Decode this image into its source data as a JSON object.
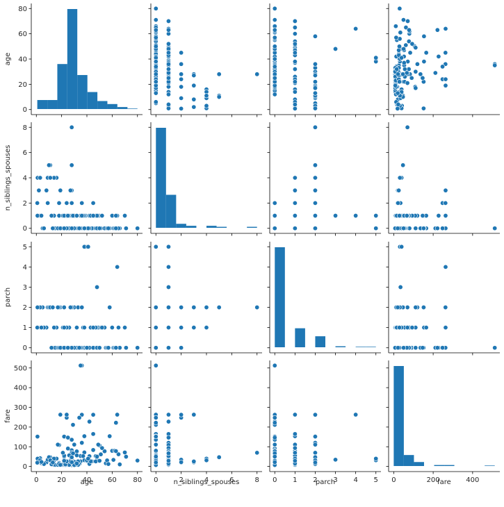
{
  "chart_data": {
    "type": "pairplot",
    "variables": [
      "age",
      "n_siblings_spouses",
      "parch",
      "fare"
    ],
    "point_color": "#1f77b4",
    "bar_color": "#1f77b4",
    "axes": {
      "age": {
        "range": [
          -4,
          84
        ],
        "ticks": [
          0,
          20,
          40,
          60,
          80
        ],
        "label": "age"
      },
      "n_siblings_spouses": {
        "range": [
          -0.4,
          8.4
        ],
        "ticks": [
          0,
          2,
          4,
          6,
          8
        ],
        "label": "n_siblings_spouses"
      },
      "parch": {
        "range": [
          -0.25,
          5.25
        ],
        "ticks": [
          0,
          1,
          2,
          3,
          4,
          5
        ],
        "label": "parch"
      },
      "fare": {
        "range": [
          -26,
          538
        ],
        "ticks": [
          0,
          100,
          200,
          300,
          400,
          500
        ],
        "xticks": [
          0,
          200,
          400
        ],
        "label": "fare"
      }
    },
    "histograms": {
      "age": {
        "edges": [
          0.75,
          8.7,
          16.6,
          24.5,
          32.4,
          40.4,
          48.3,
          56.2,
          64.1,
          72.1,
          80.0
        ],
        "rel_heights": [
          0.09,
          0.09,
          0.45,
          1.0,
          0.34,
          0.17,
          0.08,
          0.05,
          0.02,
          0.005
        ]
      },
      "n_siblings_spouses": {
        "edges": [
          0,
          0.8,
          1.6,
          2.4,
          3.2,
          4.0,
          4.8,
          5.6,
          6.4,
          7.2,
          8.0
        ],
        "rel_heights": [
          1.0,
          0.33,
          0.04,
          0.02,
          0.0,
          0.02,
          0.01,
          0.0,
          0.0,
          0.01
        ]
      },
      "parch": {
        "edges": [
          0,
          0.5,
          1.0,
          1.5,
          2.0,
          2.5,
          3.0,
          3.5,
          4.0,
          4.5,
          5.0
        ],
        "rel_heights": [
          1.0,
          0.0,
          0.19,
          0.0,
          0.11,
          0.0,
          0.01,
          0.0,
          0.005,
          0.005
        ]
      },
      "fare": {
        "edges": [
          0,
          51.2,
          102.5,
          153.7,
          204.9,
          256.2,
          307.4,
          358.6,
          409.9,
          461.1,
          512.3
        ],
        "rel_heights": [
          1.0,
          0.11,
          0.04,
          0.0,
          0.01,
          0.01,
          0.0,
          0.0,
          0.0,
          0.005
        ]
      }
    },
    "records": [
      [
        22,
        1,
        0,
        7.25
      ],
      [
        38,
        1,
        0,
        71.3
      ],
      [
        26,
        0,
        0,
        7.9
      ],
      [
        35,
        1,
        0,
        53.1
      ],
      [
        28,
        0,
        0,
        8.5
      ],
      [
        2,
        3,
        1,
        21.1
      ],
      [
        27,
        0,
        2,
        11.1
      ],
      [
        14,
        1,
        0,
        30.1
      ],
      [
        4,
        1,
        1,
        16.7
      ],
      [
        20,
        0,
        0,
        8.1
      ],
      [
        39,
        1,
        5,
        31.3
      ],
      [
        14,
        0,
        0,
        7.9
      ],
      [
        55,
        0,
        0,
        16
      ],
      [
        2,
        4,
        1,
        29.1
      ],
      [
        31,
        1,
        0,
        18
      ],
      [
        35,
        0,
        0,
        26
      ],
      [
        34,
        0,
        0,
        13
      ],
      [
        15,
        0,
        0,
        8
      ],
      [
        28,
        0,
        0,
        35.5
      ],
      [
        38,
        1,
        5,
        31.4
      ],
      [
        19,
        3,
        2,
        263
      ],
      [
        40,
        0,
        0,
        27.7
      ],
      [
        66,
        0,
        0,
        10.5
      ],
      [
        28,
        1,
        0,
        82.2
      ],
      [
        42,
        1,
        0,
        52
      ],
      [
        21,
        0,
        0,
        8.1
      ],
      [
        18,
        2,
        0,
        18
      ],
      [
        3,
        1,
        2,
        41.6
      ],
      [
        19,
        0,
        0,
        7.9
      ],
      [
        40,
        0,
        0,
        27.7
      ],
      [
        9,
        4,
        2,
        31.3
      ],
      [
        28,
        0,
        0,
        7.2
      ],
      [
        45,
        1,
        0,
        83.5
      ],
      [
        17,
        0,
        0,
        7.9
      ],
      [
        28,
        8,
        2,
        69.6
      ],
      [
        45,
        0,
        1,
        164.9
      ],
      [
        29,
        0,
        0,
        9.5
      ],
      [
        11,
        5,
        2,
        46.9
      ],
      [
        44,
        0,
        1,
        26
      ],
      [
        50,
        1,
        0,
        106.4
      ],
      [
        36,
        0,
        0,
        512.3
      ],
      [
        35,
        0,
        0,
        512.3
      ],
      [
        49,
        1,
        1,
        110.9
      ],
      [
        64,
        1,
        4,
        263
      ],
      [
        58,
        0,
        2,
        153.5
      ],
      [
        47,
        1,
        1,
        52.5
      ],
      [
        24,
        0,
        0,
        7.9
      ],
      [
        33,
        0,
        0,
        7.9
      ],
      [
        28,
        1,
        0,
        15.5
      ],
      [
        1,
        4,
        1,
        39.7
      ],
      [
        16,
        4,
        1,
        39.7
      ],
      [
        30,
        1,
        2,
        23.5
      ],
      [
        8,
        3,
        1,
        21.1
      ],
      [
        61,
        0,
        0,
        33.5
      ],
      [
        27,
        0,
        0,
        30.5
      ],
      [
        54,
        0,
        1,
        77.3
      ],
      [
        24,
        0,
        0,
        7.9
      ],
      [
        71,
        0,
        0,
        49.5
      ],
      [
        5,
        0,
        2,
        19.3
      ],
      [
        26,
        1,
        1,
        7.9
      ],
      [
        56,
        0,
        0,
        30.7
      ],
      [
        70,
        1,
        1,
        71
      ],
      [
        51,
        0,
        1,
        61.4
      ],
      [
        48,
        1,
        3,
        34.4
      ],
      [
        42,
        1,
        0,
        227.5
      ],
      [
        80,
        0,
        0,
        30
      ],
      [
        31,
        0,
        0,
        8.1
      ],
      [
        60,
        1,
        1,
        79.2
      ],
      [
        6,
        0,
        1,
        12.5
      ],
      [
        22,
        0,
        2,
        49.5
      ],
      [
        37,
        1,
        1,
        52.6
      ],
      [
        25,
        1,
        0,
        91.1
      ],
      [
        32,
        0,
        0,
        76.7
      ],
      [
        62,
        0,
        0,
        80
      ],
      [
        65,
        0,
        1,
        61.9
      ],
      [
        20,
        0,
        0,
        9.2
      ],
      [
        42,
        0,
        0,
        13
      ],
      [
        23,
        0,
        0,
        7.8
      ],
      [
        3,
        4,
        2,
        31.4
      ],
      [
        29,
        0,
        0,
        211.3
      ],
      [
        0.75,
        2,
        1,
        19.3
      ],
      [
        36,
        1,
        2,
        120
      ],
      [
        18,
        1,
        0,
        108.9
      ],
      [
        52,
        1,
        1,
        93.5
      ],
      [
        47,
        0,
        0,
        25.6
      ],
      [
        26,
        0,
        0,
        56.5
      ],
      [
        32,
        0,
        0,
        56.5
      ],
      [
        24,
        2,
        0,
        247.5
      ],
      [
        22,
        0,
        1,
        55
      ],
      [
        40,
        0,
        0,
        31
      ],
      [
        12,
        1,
        0,
        11.2
      ],
      [
        63,
        1,
        0,
        77.9
      ],
      [
        30,
        0,
        0,
        110.9
      ],
      [
        43,
        1,
        1,
        26.2
      ],
      [
        23,
        1,
        0,
        10.5
      ],
      [
        57,
        0,
        0,
        12.4
      ],
      [
        18,
        0,
        2,
        13
      ],
      [
        33,
        0,
        2,
        26
      ],
      [
        41,
        0,
        5,
        39.7
      ],
      [
        28,
        3,
        2,
        25.5
      ],
      [
        9,
        2,
        2,
        34.4
      ],
      [
        45,
        2,
        0,
        262.4
      ],
      [
        24,
        0,
        1,
        263
      ],
      [
        38,
        0,
        1,
        153.5
      ],
      [
        17,
        0,
        2,
        110.9
      ],
      [
        28,
        5,
        2,
        46.9
      ],
      [
        10,
        5,
        2,
        46.9
      ],
      [
        36,
        2,
        2,
        262.4
      ],
      [
        21,
        1,
        1,
        69.6
      ],
      [
        19,
        0,
        0,
        8
      ],
      [
        34,
        0,
        0,
        247.5
      ],
      [
        0.9,
        1,
        2,
        151.6
      ],
      [
        29,
        1,
        0,
        66.6
      ],
      [
        30,
        0,
        0,
        7.3
      ],
      [
        48,
        0,
        0,
        50
      ],
      [
        24,
        1,
        0,
        26
      ],
      [
        63,
        0,
        0,
        221.8
      ],
      [
        50,
        0,
        0,
        28.7
      ],
      [
        28,
        0,
        0,
        135.6
      ],
      [
        22,
        0,
        0,
        151.6
      ],
      [
        45,
        1,
        1,
        164.9
      ],
      [
        4,
        1,
        1,
        23
      ],
      [
        27,
        3,
        2,
        25.5
      ],
      [
        14,
        4,
        1,
        39.7
      ],
      [
        32,
        1,
        1,
        15.2
      ],
      [
        22,
        1,
        1,
        29
      ],
      [
        11,
        4,
        2,
        31.3
      ],
      [
        13,
        0,
        2,
        20.3
      ],
      [
        28,
        2,
        0,
        21.7
      ],
      [
        25,
        1,
        0,
        146.5
      ]
    ]
  }
}
